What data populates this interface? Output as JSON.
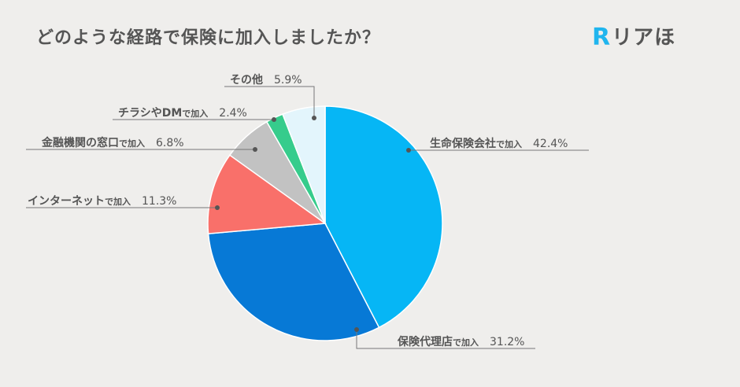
{
  "header": {
    "title": "どのような経路で保険に加入しましたか？",
    "logo_mark": "R",
    "logo_text": "リアほ"
  },
  "colors": {
    "seimei": "#06b6f5",
    "dairiten": "#0779d6",
    "internet": "#f9706a",
    "kinyu": "#c2c2c2",
    "chirashi": "#36cc8c",
    "sonota": "#e3f5fc",
    "background": "#efeeec",
    "text": "#555555",
    "brand": "#20b5ee"
  },
  "labels": {
    "seimei": {
      "main": "生命保険会社",
      "suffix": "で加入",
      "pct": "42.4%"
    },
    "dairiten": {
      "main": "保険代理店",
      "suffix": "で加入",
      "pct": "31.2%"
    },
    "internet": {
      "main": "インターネット",
      "suffix": "で加入",
      "pct": "11.3%"
    },
    "kinyu": {
      "main": "金融機関の窓口",
      "suffix": "で加入",
      "pct": "6.8%"
    },
    "chirashi": {
      "main": "チラシやDM",
      "suffix": "で加入",
      "pct": "2.4%"
    },
    "sonota": {
      "main": "その他",
      "suffix": "",
      "pct": "5.9%"
    }
  },
  "chart_data": {
    "type": "pie",
    "title": "どのような経路で保険に加入しましたか？",
    "categories": [
      "生命保険会社で加入",
      "保険代理店で加入",
      "インターネットで加入",
      "金融機関の窓口で加入",
      "チラシやDMで加入",
      "その他"
    ],
    "values": [
      42.4,
      31.2,
      11.3,
      6.8,
      2.4,
      5.9
    ],
    "unit": "%",
    "start_angle": "12 o'clock, clockwise",
    "legend": "none (leader-line labels)"
  }
}
